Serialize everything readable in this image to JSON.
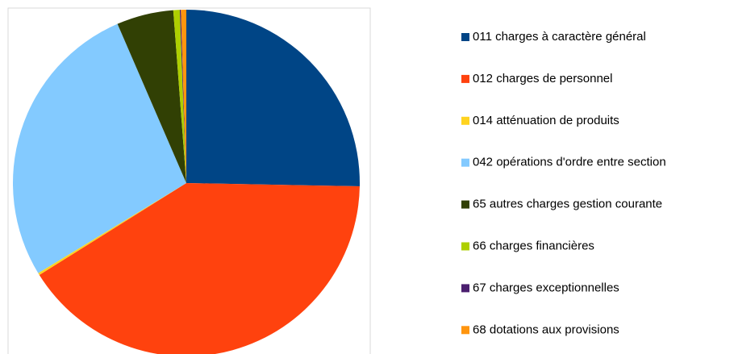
{
  "chart_data": {
    "type": "pie",
    "categories": [
      "011 charges à caractère général",
      "012 charges de personnel",
      "014 atténuation de produits",
      "042 opérations d'ordre entre section",
      "65 autres charges gestion courante",
      "66 charges financières",
      "67 charges exceptionnelles",
      "68 dotations aux provisions"
    ],
    "values": [
      25.3,
      40.8,
      0.2,
      27.2,
      5.3,
      0.6,
      0.1,
      0.5
    ],
    "colors": [
      "#004586",
      "#ff420e",
      "#ffd320",
      "#83caff",
      "#314004",
      "#aecf00",
      "#4b1f6f",
      "#ff950e"
    ],
    "legend": "right"
  }
}
